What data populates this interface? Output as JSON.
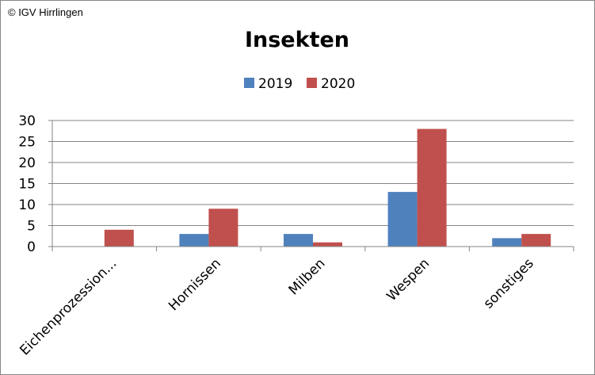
{
  "copyright": "© IGV Hirrlingen",
  "chart_data": {
    "type": "bar",
    "title": "Insekten",
    "categories": [
      "Eichenprozession...",
      "Hornissen",
      "Milben",
      "Wespen",
      "sonstiges"
    ],
    "series": [
      {
        "name": "2019",
        "values": [
          0,
          3,
          3,
          13,
          2
        ],
        "color": "#4f81bd"
      },
      {
        "name": "2020",
        "values": [
          4,
          9,
          1,
          28,
          3
        ],
        "color": "#c0504d"
      }
    ],
    "xlabel": "",
    "ylabel": "",
    "ylim": [
      0,
      30
    ],
    "yticks": [
      0,
      5,
      10,
      15,
      20,
      25,
      30
    ],
    "grid": true,
    "legend": "top-center"
  }
}
